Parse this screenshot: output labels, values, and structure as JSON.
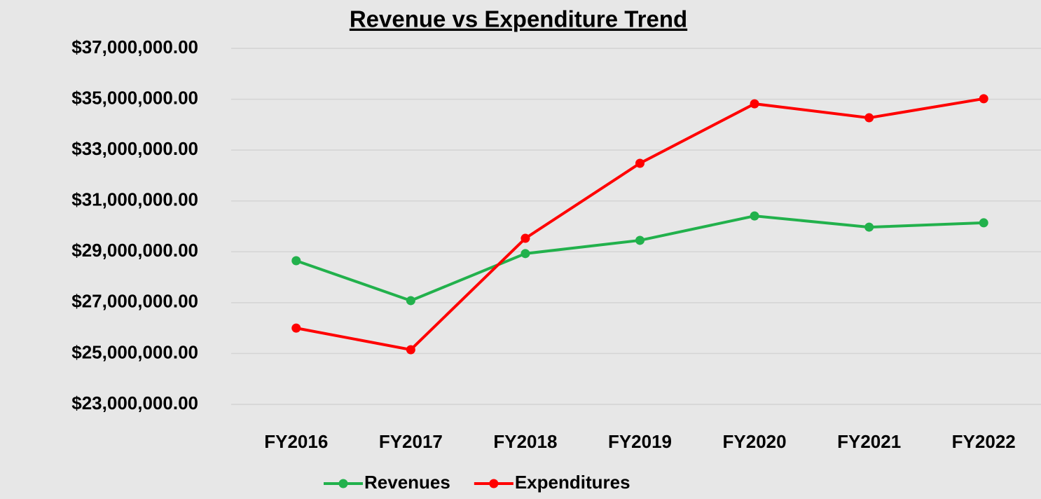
{
  "chart_data": {
    "type": "line",
    "title": "Revenue vs Expenditure Trend",
    "categories": [
      "FY2016",
      "FY2017",
      "FY2018",
      "FY2019",
      "FY2020",
      "FY2021",
      "FY2022"
    ],
    "series": [
      {
        "name": "Revenues",
        "color": "#22b14c",
        "values": [
          28650000,
          27080000,
          28930000,
          29450000,
          30410000,
          29970000,
          30140000
        ]
      },
      {
        "name": "Expenditures",
        "color": "#ff0000",
        "values": [
          26000000,
          25150000,
          29530000,
          32480000,
          34820000,
          34270000,
          35020000
        ]
      }
    ],
    "ylim": [
      23000000,
      37000000
    ],
    "yticks": [
      {
        "value": 23000000,
        "label": "$23,000,000.00"
      },
      {
        "value": 25000000,
        "label": "$25,000,000.00"
      },
      {
        "value": 27000000,
        "label": "$27,000,000.00"
      },
      {
        "value": 29000000,
        "label": "$29,000,000.00"
      },
      {
        "value": 31000000,
        "label": "$31,000,000.00"
      },
      {
        "value": 33000000,
        "label": "$33,000,000.00"
      },
      {
        "value": 35000000,
        "label": "$35,000,000.00"
      },
      {
        "value": 37000000,
        "label": "$37,000,000.00"
      }
    ],
    "grid": true,
    "legend": "bottom"
  }
}
